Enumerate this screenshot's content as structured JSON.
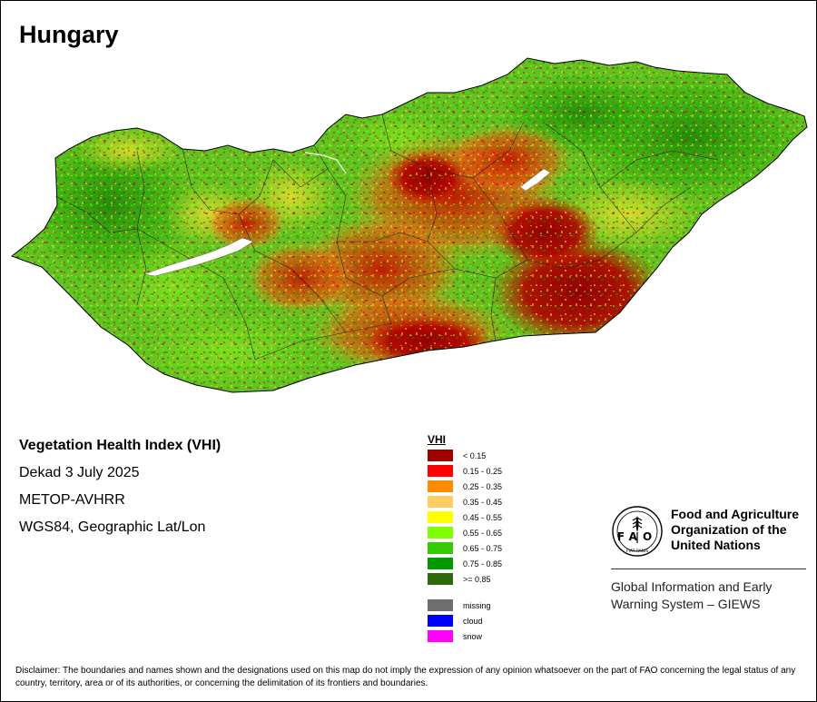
{
  "map": {
    "country": "Hungary",
    "colors": {
      "water": "#ffffff",
      "border": "#1a1a1a",
      "base": "#5fc321"
    },
    "regions": [
      {
        "name": "severe-stress-east",
        "category": "< 0.15"
      },
      {
        "name": "stress-south-central",
        "category": "0.15 - 0.25"
      },
      {
        "name": "healthy-northeast",
        "category": ">= 0.85"
      },
      {
        "name": "healthy-west",
        "category": "0.65 - 0.75"
      }
    ],
    "lake": "lake-balaton"
  },
  "info": {
    "title": "Vegetation Health Index (VHI)",
    "period": "Dekad 3 July 2025",
    "sensor": "METOP-AVHRR",
    "projection": "WGS84, Geographic Lat/Lon"
  },
  "legend": {
    "title": "VHI",
    "classes": [
      {
        "label": "< 0.15",
        "color": "#a00000"
      },
      {
        "label": "0.15 - 0.25",
        "color": "#ff0000"
      },
      {
        "label": "0.25 - 0.35",
        "color": "#ff8c00"
      },
      {
        "label": "0.35 - 0.45",
        "color": "#ffcc66"
      },
      {
        "label": "0.45 - 0.55",
        "color": "#ffff00"
      },
      {
        "label": "0.55 - 0.65",
        "color": "#80ff00"
      },
      {
        "label": "0.65 - 0.75",
        "color": "#33cc00"
      },
      {
        "label": "0.75 - 0.85",
        "color": "#009900"
      },
      {
        "label": ">= 0.85",
        "color": "#2d6a0c"
      }
    ],
    "extra": [
      {
        "label": "missing",
        "color": "#6e6e6e"
      },
      {
        "label": "cloud",
        "color": "#0000ff"
      },
      {
        "label": "snow",
        "color": "#ff00ff"
      }
    ]
  },
  "org": {
    "emblem_letters": "FAO",
    "emblem_motto": "FIAT PANIS",
    "name_lines": [
      "Food and Agriculture",
      "Organization of the",
      "United Nations"
    ],
    "system_lines": [
      "Global Information and Early",
      "Warning System – GIEWS"
    ]
  },
  "disclaimer": "Disclaimer: The boundaries and names shown and the designations used on this map do not imply the expression of any opinion whatsoever on the part of FAO concerning the legal status of any country, territory, area or of its authorities, or concerning the delimitation of its frontiers and boundaries."
}
